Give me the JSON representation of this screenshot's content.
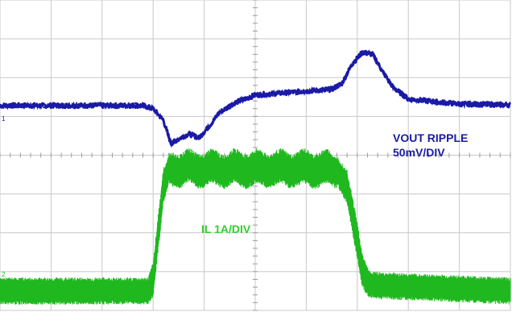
{
  "chart_data": {
    "type": "line",
    "title": "",
    "xlabel": "",
    "ylabel": "",
    "grid": true,
    "grid_divisions": {
      "x": 10,
      "y": 8
    },
    "xlim": [
      0,
      10
    ],
    "ylim": [
      -4,
      4
    ],
    "annotations": {
      "vout": [
        "VOUT RIPPLE",
        "50mV/DIV"
      ],
      "il": "IL 1A/DIV"
    },
    "colors": {
      "vout": "#1a1aa6",
      "il": "#1fb81f",
      "grid": "#c8c8c8",
      "axis_tick": "#9a9a9a"
    },
    "series": [
      {
        "x": [
          0,
          2.8,
          3.0,
          3.2,
          3.35,
          3.5,
          3.7,
          3.9,
          4.1,
          4.3,
          4.6,
          5.0,
          5.5,
          6.0,
          6.5,
          6.7,
          6.9,
          7.1,
          7.3,
          7.5,
          7.7,
          8.0,
          8.5,
          9.0,
          10
        ],
        "values": [
          1.28,
          1.28,
          1.2,
          0.9,
          0.3,
          0.42,
          0.55,
          0.45,
          0.75,
          1.1,
          1.35,
          1.55,
          1.6,
          1.65,
          1.7,
          1.85,
          2.35,
          2.65,
          2.6,
          2.15,
          1.75,
          1.45,
          1.38,
          1.32,
          1.3
        ]
      },
      {
        "x": [
          0,
          2.9,
          3.0,
          3.1,
          3.2,
          3.3,
          3.4,
          6.4,
          6.6,
          6.8,
          7.0,
          7.1,
          7.25,
          10
        ],
        "values": [
          -3.5,
          -3.5,
          -3.2,
          -2.0,
          -0.8,
          -0.4,
          -0.35,
          -0.35,
          -0.4,
          -0.8,
          -2.2,
          -3.0,
          -3.35,
          -3.5
        ],
        "band": [
          0.35,
          0.35,
          0.45,
          0.5,
          0.45,
          0.4,
          0.45,
          0.45,
          0.4,
          0.45,
          0.5,
          0.45,
          0.35,
          0.35
        ]
      }
    ]
  },
  "markers": {
    "ch1_label": "1",
    "ch2_label": "2"
  }
}
